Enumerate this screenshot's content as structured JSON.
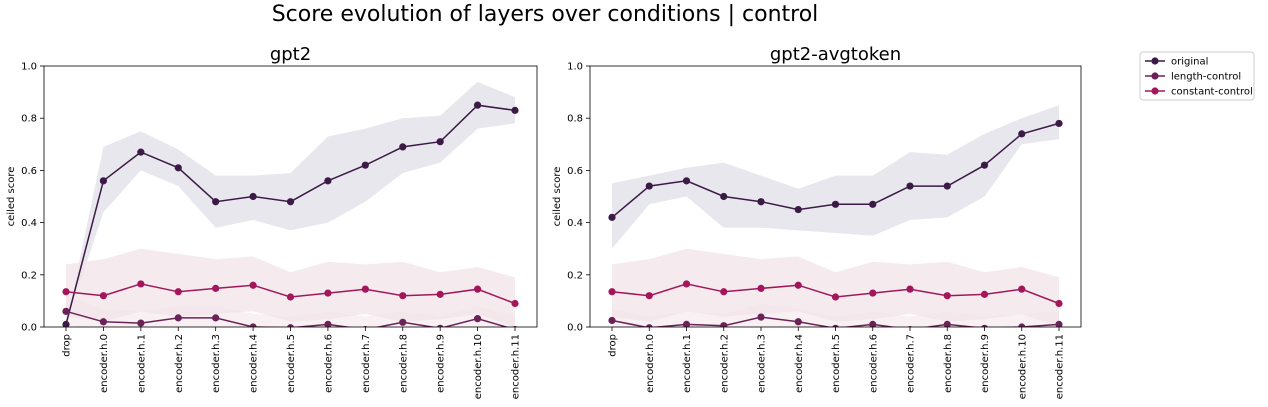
{
  "suptitle": "Score evolution of layers over conditions | control",
  "colors": {
    "original": "#3b1a45",
    "length-control": "#6b2257",
    "constant-control": "#a3175a",
    "band_original": "#e9e7ee",
    "band_control": "#f2e4ea"
  },
  "legend": {
    "placement": "upper right, outside",
    "entries": [
      "original",
      "length-control",
      "constant-control"
    ]
  },
  "chart_data": [
    {
      "type": "line",
      "title": "gpt2",
      "xlabel": "",
      "ylabel": "ceiled score",
      "ylim": [
        0,
        1.0
      ],
      "yticks": [
        "0.0",
        "0.2",
        "0.4",
        "0.6",
        "0.8",
        "1.0"
      ],
      "categories": [
        "drop",
        "encoder.h.0",
        "encoder.h.1",
        "encoder.h.2",
        "encoder.h.3",
        "encoder.h.4",
        "encoder.h.5",
        "encoder.h.6",
        "encoder.h.7",
        "encoder.h.8",
        "encoder.h.9",
        "encoder.h.10",
        "encoder.h.11"
      ],
      "series": [
        {
          "name": "original",
          "values": [
            0.01,
            0.56,
            0.67,
            0.61,
            0.48,
            0.5,
            0.48,
            0.56,
            0.62,
            0.69,
            0.71,
            0.85,
            0.83
          ],
          "lower": [
            0.01,
            0.44,
            0.6,
            0.54,
            0.38,
            0.41,
            0.37,
            0.4,
            0.48,
            0.59,
            0.63,
            0.76,
            0.78
          ],
          "upper": [
            0.01,
            0.69,
            0.75,
            0.68,
            0.58,
            0.58,
            0.59,
            0.73,
            0.76,
            0.8,
            0.81,
            0.94,
            0.88
          ]
        },
        {
          "name": "length-control",
          "values": [
            0.06,
            0.02,
            0.015,
            0.035,
            0.035,
            0.0,
            -0.003,
            0.01,
            -0.01,
            0.018,
            -0.005,
            0.032,
            -0.01
          ],
          "lower": [
            0.01,
            -0.02,
            -0.03,
            -0.01,
            -0.01,
            -0.04,
            -0.04,
            -0.03,
            -0.05,
            -0.02,
            -0.04,
            -0.01,
            -0.05
          ],
          "upper": [
            0.12,
            0.07,
            0.06,
            0.08,
            0.08,
            0.05,
            0.04,
            0.06,
            0.04,
            0.06,
            0.04,
            0.08,
            0.04
          ]
        },
        {
          "name": "constant-control",
          "values": [
            0.135,
            0.12,
            0.165,
            0.135,
            0.148,
            0.16,
            0.115,
            0.13,
            0.145,
            0.12,
            0.125,
            0.145,
            0.09
          ],
          "lower": [
            0.04,
            0.02,
            0.06,
            0.04,
            0.05,
            0.06,
            0.02,
            0.03,
            0.05,
            0.02,
            0.03,
            0.05,
            0.0
          ],
          "upper": [
            0.24,
            0.26,
            0.3,
            0.28,
            0.26,
            0.27,
            0.21,
            0.25,
            0.24,
            0.25,
            0.21,
            0.23,
            0.19
          ]
        }
      ]
    },
    {
      "type": "line",
      "title": "gpt2-avgtoken",
      "xlabel": "",
      "ylabel": "ceiled score",
      "ylim": [
        0,
        1.0
      ],
      "yticks": [
        "0.0",
        "0.2",
        "0.4",
        "0.6",
        "0.8",
        "1.0"
      ],
      "categories": [
        "drop",
        "encoder.h.0",
        "encoder.h.1",
        "encoder.h.2",
        "encoder.h.3",
        "encoder.h.4",
        "encoder.h.5",
        "encoder.h.6",
        "encoder.h.7",
        "encoder.h.8",
        "encoder.h.9",
        "encoder.h.10",
        "encoder.h.11"
      ],
      "series": [
        {
          "name": "original",
          "values": [
            0.42,
            0.54,
            0.56,
            0.5,
            0.48,
            0.45,
            0.47,
            0.47,
            0.54,
            0.54,
            0.62,
            0.74,
            0.78
          ],
          "lower": [
            0.3,
            0.47,
            0.5,
            0.38,
            0.38,
            0.37,
            0.36,
            0.35,
            0.41,
            0.42,
            0.5,
            0.7,
            0.72
          ],
          "upper": [
            0.55,
            0.58,
            0.61,
            0.63,
            0.58,
            0.53,
            0.58,
            0.58,
            0.67,
            0.66,
            0.74,
            0.8,
            0.85
          ]
        },
        {
          "name": "length-control",
          "values": [
            0.025,
            -0.003,
            0.01,
            0.005,
            0.038,
            0.02,
            -0.005,
            0.01,
            -0.01,
            0.01,
            -0.005,
            0.0,
            0.01
          ],
          "lower": [
            -0.02,
            -0.05,
            -0.04,
            -0.04,
            -0.01,
            -0.03,
            -0.05,
            -0.04,
            -0.06,
            -0.04,
            -0.05,
            -0.05,
            -0.04
          ],
          "upper": [
            0.07,
            0.04,
            0.06,
            0.05,
            0.09,
            0.07,
            0.04,
            0.06,
            0.04,
            0.06,
            0.04,
            0.05,
            0.06
          ]
        },
        {
          "name": "constant-control",
          "values": [
            0.135,
            0.12,
            0.165,
            0.135,
            0.148,
            0.16,
            0.115,
            0.13,
            0.145,
            0.12,
            0.125,
            0.145,
            0.09
          ],
          "lower": [
            0.04,
            0.02,
            0.06,
            0.04,
            0.05,
            0.06,
            0.02,
            0.03,
            0.05,
            0.02,
            0.03,
            0.05,
            0.0
          ],
          "upper": [
            0.24,
            0.26,
            0.3,
            0.28,
            0.26,
            0.27,
            0.21,
            0.25,
            0.24,
            0.25,
            0.21,
            0.23,
            0.19
          ]
        }
      ]
    }
  ]
}
